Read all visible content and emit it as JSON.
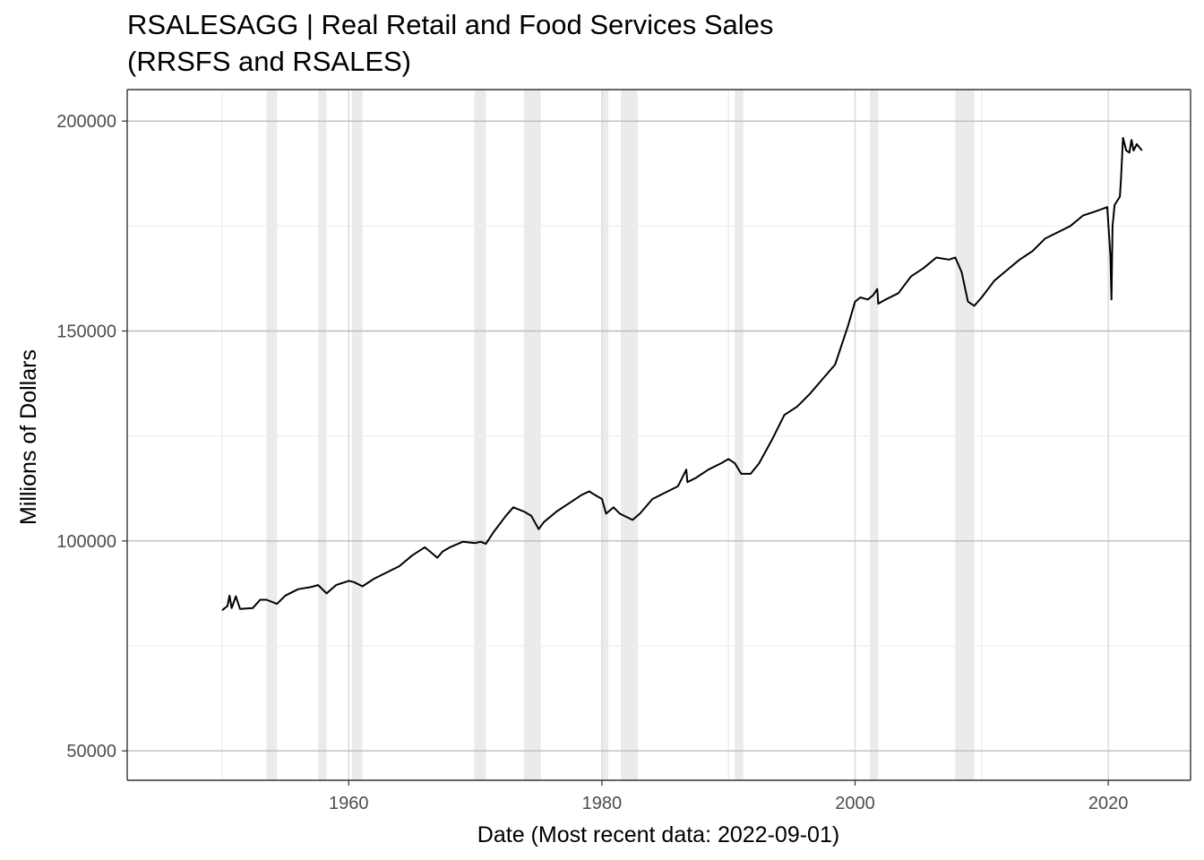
{
  "title_line1": "RSALESAGG | Real Retail and Food Services Sales",
  "title_line2": "(RRSFS and RSALES)",
  "chart_data": {
    "type": "line",
    "xlabel": "Date (Most recent data: 2022-09-01)",
    "ylabel": "Millions of Dollars",
    "xlim": [
      "1942-07-01",
      "2026-07-01"
    ],
    "ylim": [
      43000,
      207500
    ],
    "x_ticks": [
      "1960",
      "1980",
      "2000",
      "2020"
    ],
    "y_ticks": [
      50000,
      100000,
      150000,
      200000
    ],
    "grid": true,
    "recessions": [
      [
        "1953-07-01",
        "1954-05-01"
      ],
      [
        "1957-08-01",
        "1958-04-01"
      ],
      [
        "1960-04-01",
        "1961-02-01"
      ],
      [
        "1969-12-01",
        "1970-11-01"
      ],
      [
        "1973-11-01",
        "1975-03-01"
      ],
      [
        "1980-01-01",
        "1980-07-01"
      ],
      [
        "1981-07-01",
        "1982-11-01"
      ],
      [
        "1990-07-01",
        "1991-03-01"
      ],
      [
        "2001-03-01",
        "2001-11-01"
      ],
      [
        "2007-12-01",
        "2009-06-01"
      ]
    ],
    "series": [
      {
        "color": "#000000",
        "points": [
          [
            "1950-01-01",
            83500
          ],
          [
            "1950-06-01",
            84500
          ],
          [
            "1950-08-01",
            87000
          ],
          [
            "1950-10-01",
            84000
          ],
          [
            "1951-02-01",
            86800
          ],
          [
            "1951-06-01",
            83800
          ],
          [
            "1952-06-01",
            84000
          ],
          [
            "1953-01-01",
            86000
          ],
          [
            "1953-07-01",
            86000
          ],
          [
            "1954-05-01",
            85000
          ],
          [
            "1955-01-01",
            87000
          ],
          [
            "1956-01-01",
            88500
          ],
          [
            "1957-01-01",
            89000
          ],
          [
            "1957-08-01",
            89500
          ],
          [
            "1958-04-01",
            87500
          ],
          [
            "1959-01-01",
            89500
          ],
          [
            "1960-01-01",
            90500
          ],
          [
            "1960-06-01",
            90200
          ],
          [
            "1961-02-01",
            89200
          ],
          [
            "1962-01-01",
            91000
          ],
          [
            "1963-01-01",
            92500
          ],
          [
            "1964-01-01",
            94000
          ],
          [
            "1965-01-01",
            96500
          ],
          [
            "1966-01-01",
            98500
          ],
          [
            "1966-06-01",
            97500
          ],
          [
            "1967-01-01",
            96000
          ],
          [
            "1967-06-01",
            97500
          ],
          [
            "1968-01-01",
            98500
          ],
          [
            "1969-01-01",
            99800
          ],
          [
            "1970-01-01",
            99500
          ],
          [
            "1970-06-01",
            99800
          ],
          [
            "1970-11-01",
            99300
          ],
          [
            "1971-06-01",
            102000
          ],
          [
            "1972-06-01",
            106000
          ],
          [
            "1973-01-01",
            108000
          ],
          [
            "1973-11-01",
            107000
          ],
          [
            "1974-06-01",
            106000
          ],
          [
            "1975-01-01",
            102800
          ],
          [
            "1975-06-01",
            104500
          ],
          [
            "1976-06-01",
            107000
          ],
          [
            "1977-06-01",
            109000
          ],
          [
            "1978-06-01",
            111000
          ],
          [
            "1979-01-01",
            111800
          ],
          [
            "1979-06-01",
            111000
          ],
          [
            "1980-01-01",
            110000
          ],
          [
            "1980-05-01",
            106500
          ],
          [
            "1980-12-01",
            108000
          ],
          [
            "1981-06-01",
            106500
          ],
          [
            "1982-06-01",
            105000
          ],
          [
            "1983-01-01",
            106500
          ],
          [
            "1984-01-01",
            110000
          ],
          [
            "1985-01-01",
            111500
          ],
          [
            "1986-01-01",
            113000
          ],
          [
            "1986-09-01",
            117000
          ],
          [
            "1986-10-01",
            114000
          ],
          [
            "1987-06-01",
            115000
          ],
          [
            "1988-06-01",
            117000
          ],
          [
            "1989-06-01",
            118500
          ],
          [
            "1990-01-01",
            119500
          ],
          [
            "1990-07-01",
            118500
          ],
          [
            "1991-01-01",
            116000
          ],
          [
            "1991-10-01",
            116000
          ],
          [
            "1992-06-01",
            118500
          ],
          [
            "1993-06-01",
            124000
          ],
          [
            "1994-06-01",
            130000
          ],
          [
            "1995-06-01",
            132000
          ],
          [
            "1996-06-01",
            135000
          ],
          [
            "1997-06-01",
            138500
          ],
          [
            "1998-06-01",
            142000
          ],
          [
            "1999-06-01",
            151000
          ],
          [
            "2000-01-01",
            157000
          ],
          [
            "2000-06-01",
            158000
          ],
          [
            "2001-01-01",
            157500
          ],
          [
            "2001-06-01",
            158500
          ],
          [
            "2001-10-01",
            160000
          ],
          [
            "2001-11-01",
            156500
          ],
          [
            "2002-06-01",
            157500
          ],
          [
            "2003-06-01",
            159000
          ],
          [
            "2004-06-01",
            163000
          ],
          [
            "2005-06-01",
            165000
          ],
          [
            "2006-06-01",
            167500
          ],
          [
            "2007-06-01",
            167000
          ],
          [
            "2007-12-01",
            167500
          ],
          [
            "2008-06-01",
            164000
          ],
          [
            "2008-12-01",
            157000
          ],
          [
            "2009-06-01",
            156000
          ],
          [
            "2010-01-01",
            158000
          ],
          [
            "2011-01-01",
            162000
          ],
          [
            "2012-01-01",
            164500
          ],
          [
            "2013-01-01",
            167000
          ],
          [
            "2014-01-01",
            169000
          ],
          [
            "2015-01-01",
            172000
          ],
          [
            "2016-01-01",
            173500
          ],
          [
            "2017-01-01",
            175000
          ],
          [
            "2018-01-01",
            177500
          ],
          [
            "2019-01-01",
            178500
          ],
          [
            "2019-12-01",
            179500
          ],
          [
            "2020-03-01",
            168000
          ],
          [
            "2020-04-01",
            157500
          ],
          [
            "2020-05-01",
            175000
          ],
          [
            "2020-07-01",
            180000
          ],
          [
            "2020-12-01",
            182000
          ],
          [
            "2021-01-01",
            186000
          ],
          [
            "2021-03-01",
            196000
          ],
          [
            "2021-06-01",
            193000
          ],
          [
            "2021-09-01",
            192500
          ],
          [
            "2021-11-01",
            195500
          ],
          [
            "2022-01-01",
            193000
          ],
          [
            "2022-04-01",
            194500
          ],
          [
            "2022-09-01",
            193000
          ]
        ]
      }
    ]
  }
}
